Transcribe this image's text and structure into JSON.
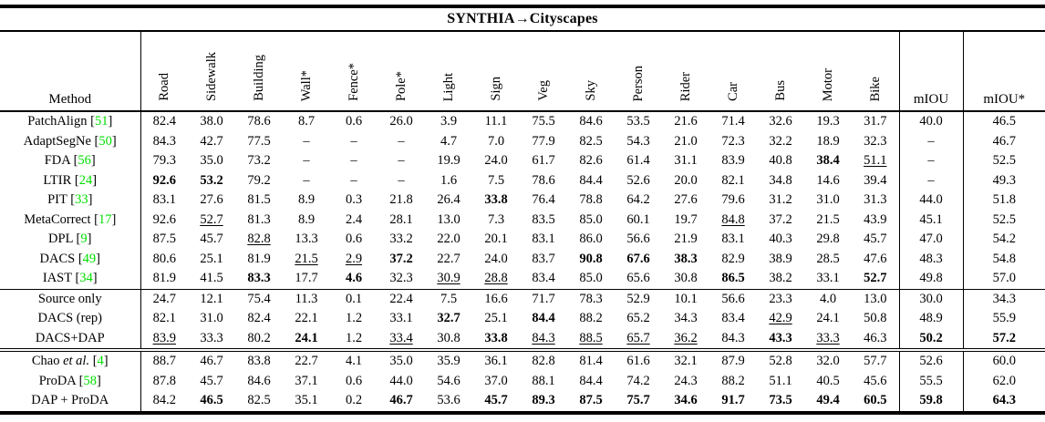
{
  "title": "SYNTHIA→Cityscapes",
  "colors": {
    "citation_green": "#00e000"
  },
  "columns": {
    "method": "Method",
    "classes": [
      "Road",
      "Sidewalk",
      "Building",
      "Wall*",
      "Fence*",
      "Pole*",
      "Light",
      "Sign",
      "Veg",
      "Sky",
      "Person",
      "Rider",
      "Car",
      "Bus",
      "Motor",
      "Bike"
    ],
    "miou": "mIOU",
    "miou_star": "mIOU*"
  },
  "rows": [
    {
      "name": "PatchAlign",
      "cite": "51",
      "values": [
        "82.4",
        "38.0",
        "78.6",
        "8.7",
        "0.6",
        "26.0",
        "3.9",
        "11.1",
        "75.5",
        "84.6",
        "53.5",
        "21.6",
        "71.4",
        "32.6",
        "19.3",
        "31.7",
        "40.0",
        "46.5"
      ],
      "bold": [],
      "underline": []
    },
    {
      "name": "AdaptSegNe",
      "cite": "50",
      "values": [
        "84.3",
        "42.7",
        "77.5",
        "–",
        "–",
        "–",
        "4.7",
        "7.0",
        "77.9",
        "82.5",
        "54.3",
        "21.0",
        "72.3",
        "32.2",
        "18.9",
        "32.3",
        "–",
        "46.7"
      ],
      "bold": [],
      "underline": []
    },
    {
      "name": "FDA",
      "cite": "56",
      "values": [
        "79.3",
        "35.0",
        "73.2",
        "–",
        "–",
        "–",
        "19.9",
        "24.0",
        "61.7",
        "82.6",
        "61.4",
        "31.1",
        "83.9",
        "40.8",
        "38.4",
        "51.1",
        "–",
        "52.5"
      ],
      "bold": [
        14
      ],
      "underline": [
        15
      ]
    },
    {
      "name": "LTIR",
      "cite": "24",
      "values": [
        "92.6",
        "53.2",
        "79.2",
        "–",
        "–",
        "–",
        "1.6",
        "7.5",
        "78.6",
        "84.4",
        "52.6",
        "20.0",
        "82.1",
        "34.8",
        "14.6",
        "39.4",
        "–",
        "49.3"
      ],
      "bold": [
        0,
        1
      ],
      "underline": []
    },
    {
      "name": "PIT",
      "cite": "33",
      "values": [
        "83.1",
        "27.6",
        "81.5",
        "8.9",
        "0.3",
        "21.8",
        "26.4",
        "33.8",
        "76.4",
        "78.8",
        "64.2",
        "27.6",
        "79.6",
        "31.2",
        "31.0",
        "31.3",
        "44.0",
        "51.8"
      ],
      "bold": [
        7
      ],
      "underline": []
    },
    {
      "name": "MetaCorrect",
      "cite": "17",
      "values": [
        "92.6",
        "52.7",
        "81.3",
        "8.9",
        "2.4",
        "28.1",
        "13.0",
        "7.3",
        "83.5",
        "85.0",
        "60.1",
        "19.7",
        "84.8",
        "37.2",
        "21.5",
        "43.9",
        "45.1",
        "52.5"
      ],
      "bold": [],
      "underline": [
        1,
        12
      ]
    },
    {
      "name": "DPL",
      "cite": "9",
      "values": [
        "87.5",
        "45.7",
        "82.8",
        "13.3",
        "0.6",
        "33.2",
        "22.0",
        "20.1",
        "83.1",
        "86.0",
        "56.6",
        "21.9",
        "83.1",
        "40.3",
        "29.8",
        "45.7",
        "47.0",
        "54.2"
      ],
      "bold": [],
      "underline": [
        2
      ]
    },
    {
      "name": "DACS",
      "cite": "49",
      "values": [
        "80.6",
        "25.1",
        "81.9",
        "21.5",
        "2.9",
        "37.2",
        "22.7",
        "24.0",
        "83.7",
        "90.8",
        "67.6",
        "38.3",
        "82.9",
        "38.9",
        "28.5",
        "47.6",
        "48.3",
        "54.8"
      ],
      "bold": [
        5,
        9,
        10,
        11
      ],
      "underline": [
        3,
        4
      ]
    },
    {
      "name": "IAST",
      "cite": "34",
      "values": [
        "81.9",
        "41.5",
        "83.3",
        "17.7",
        "4.6",
        "32.3",
        "30.9",
        "28.8",
        "83.4",
        "85.0",
        "65.6",
        "30.8",
        "86.5",
        "38.2",
        "33.1",
        "52.7",
        "49.8",
        "57.0"
      ],
      "bold": [
        2,
        4,
        12,
        15
      ],
      "underline": [
        6,
        7
      ]
    },
    {
      "name": "Source only",
      "sep": "thin",
      "values": [
        "24.7",
        "12.1",
        "75.4",
        "11.3",
        "0.1",
        "22.4",
        "7.5",
        "16.6",
        "71.7",
        "78.3",
        "52.9",
        "10.1",
        "56.6",
        "23.3",
        "4.0",
        "13.0",
        "30.0",
        "34.3"
      ],
      "bold": [],
      "underline": []
    },
    {
      "name": "DACS (rep)",
      "values": [
        "82.1",
        "31.0",
        "82.4",
        "22.1",
        "1.2",
        "33.1",
        "32.7",
        "25.1",
        "84.4",
        "88.2",
        "65.2",
        "34.3",
        "83.4",
        "42.9",
        "24.1",
        "50.8",
        "48.9",
        "55.9"
      ],
      "bold": [
        6,
        8
      ],
      "underline": [
        13
      ]
    },
    {
      "name": "DACS+DAP",
      "values": [
        "83.9",
        "33.3",
        "80.2",
        "24.1",
        "1.2",
        "33.4",
        "30.8",
        "33.8",
        "84.3",
        "88.5",
        "65.7",
        "36.2",
        "84.3",
        "43.3",
        "33.3",
        "46.3",
        "50.2",
        "57.2"
      ],
      "bold": [
        3,
        7,
        13,
        16,
        17
      ],
      "underline": [
        0,
        5,
        8,
        9,
        10,
        11,
        14
      ]
    },
    {
      "name": "Chao",
      "italic": "et al.",
      "cite": "4",
      "sep": "double",
      "values": [
        "88.7",
        "46.7",
        "83.8",
        "22.7",
        "4.1",
        "35.0",
        "35.9",
        "36.1",
        "82.8",
        "81.4",
        "61.6",
        "32.1",
        "87.9",
        "52.8",
        "32.0",
        "57.7",
        "52.6",
        "60.0"
      ],
      "bold": [],
      "underline": []
    },
    {
      "name": "ProDA",
      "cite": "58",
      "values": [
        "87.8",
        "45.7",
        "84.6",
        "37.1",
        "0.6",
        "44.0",
        "54.6",
        "37.0",
        "88.1",
        "84.4",
        "74.2",
        "24.3",
        "88.2",
        "51.1",
        "40.5",
        "45.6",
        "55.5",
        "62.0"
      ],
      "bold": [],
      "underline": []
    },
    {
      "name": "DAP + ProDA",
      "values": [
        "84.2",
        "46.5",
        "82.5",
        "35.1",
        "0.2",
        "46.7",
        "53.6",
        "45.7",
        "89.3",
        "87.5",
        "75.7",
        "34.6",
        "91.7",
        "73.5",
        "49.4",
        "60.5",
        "59.8",
        "64.3"
      ],
      "bold": [
        1,
        5,
        7,
        8,
        9,
        10,
        11,
        12,
        13,
        14,
        15,
        16,
        17
      ],
      "underline": []
    }
  ]
}
